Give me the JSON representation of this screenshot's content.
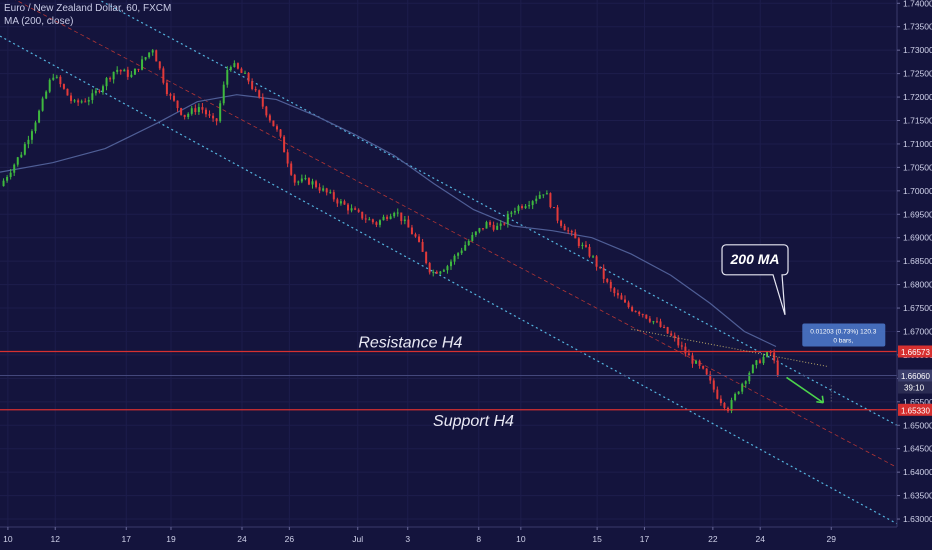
{
  "header": {
    "title": "Euro / New Zealand Dollar, 60, FXCM",
    "indicator": "MA (200, close)"
  },
  "colors": {
    "background": "#14143d",
    "up_candle": "#3fb93f",
    "down_candle": "#e23a3a",
    "ma_line": "#4f5e96",
    "channel_lines": "#55b5e0",
    "mid_channel": "#b23535",
    "resistance": "#d63030",
    "support": "#d63030",
    "arrow": "#4cd44c"
  },
  "annotations": {
    "resistance_label": "Resistance H4",
    "support_label": "Support H4",
    "ma_callout": "200 MA",
    "measure_line1": "0.01203 (0.73%) 120.3",
    "measure_line2": "0 bars,",
    "timer": "39:10"
  },
  "chart_data": {
    "type": "candlestick",
    "symbol": "EURNZD",
    "timeframe": "60",
    "x_tick_labels": [
      "10",
      "12",
      "17",
      "19",
      "24",
      "26",
      "Jul",
      "3",
      "8",
      "10",
      "15",
      "17",
      "22",
      "24",
      "29"
    ],
    "y_ticks": [
      1.74,
      1.735,
      1.73,
      1.725,
      1.72,
      1.715,
      1.71,
      1.705,
      1.7,
      1.695,
      1.69,
      1.685,
      1.68,
      1.675,
      1.67,
      1.665,
      1.66,
      1.655,
      1.65,
      1.645,
      1.64,
      1.635,
      1.63
    ],
    "y_tick_labels": [
      "1.74000",
      "1.73500",
      "1.73000",
      "1.72500",
      "1.72000",
      "1.71500",
      "1.71000",
      "1.70500",
      "1.70000",
      "1.69500",
      "1.69000",
      "1.68500",
      "1.68000",
      "1.67500",
      "1.67000",
      "1.66500",
      "1.66000",
      "1.65500",
      "1.65000",
      "1.64500",
      "1.64000",
      "1.63500",
      "1.63000"
    ],
    "ylim": [
      1.6283,
      1.7407
    ],
    "price_labels": {
      "resistance": {
        "value": 1.66573,
        "label": "1.66573"
      },
      "current": {
        "value": 1.6606,
        "label": "1.66060"
      },
      "support": {
        "value": 1.6533,
        "label": "1.65330"
      }
    },
    "price_path": [
      {
        "x": 0,
        "y": 1.701
      },
      {
        "x": 0.8,
        "y": 1.708
      },
      {
        "x": 1.5,
        "y": 1.717
      },
      {
        "x": 2.0,
        "y": 1.725
      },
      {
        "x": 2.8,
        "y": 1.7185
      },
      {
        "x": 3.5,
        "y": 1.72
      },
      {
        "x": 4.4,
        "y": 1.726
      },
      {
        "x": 5.0,
        "y": 1.7245
      },
      {
        "x": 5.8,
        "y": 1.7305
      },
      {
        "x": 6.4,
        "y": 1.7205
      },
      {
        "x": 7.0,
        "y": 1.716
      },
      {
        "x": 7.6,
        "y": 1.718
      },
      {
        "x": 8.2,
        "y": 1.714
      },
      {
        "x": 8.7,
        "y": 1.7275
      },
      {
        "x": 9.4,
        "y": 1.724
      },
      {
        "x": 9.9,
        "y": 1.719
      },
      {
        "x": 10.6,
        "y": 1.712
      },
      {
        "x": 11.2,
        "y": 1.702
      },
      {
        "x": 11.8,
        "y": 1.702
      },
      {
        "x": 12.8,
        "y": 1.698
      },
      {
        "x": 13.6,
        "y": 1.695
      },
      {
        "x": 14.3,
        "y": 1.693
      },
      {
        "x": 15.0,
        "y": 1.696
      },
      {
        "x": 15.8,
        "y": 1.69
      },
      {
        "x": 16.4,
        "y": 1.6825
      },
      {
        "x": 17.0,
        "y": 1.684
      },
      {
        "x": 17.6,
        "y": 1.688
      },
      {
        "x": 18.1,
        "y": 1.691
      },
      {
        "x": 18.5,
        "y": 1.693
      },
      {
        "x": 19.0,
        "y": 1.692
      },
      {
        "x": 19.5,
        "y": 1.696
      },
      {
        "x": 20.2,
        "y": 1.698
      },
      {
        "x": 20.7,
        "y": 1.7
      },
      {
        "x": 21.2,
        "y": 1.694
      },
      {
        "x": 21.8,
        "y": 1.69
      },
      {
        "x": 22.5,
        "y": 1.686
      },
      {
        "x": 23.2,
        "y": 1.679
      },
      {
        "x": 23.8,
        "y": 1.6755
      },
      {
        "x": 24.4,
        "y": 1.674
      },
      {
        "x": 25.0,
        "y": 1.6715
      },
      {
        "x": 25.6,
        "y": 1.6685
      },
      {
        "x": 26.2,
        "y": 1.6645
      },
      {
        "x": 26.8,
        "y": 1.661
      },
      {
        "x": 27.3,
        "y": 1.656
      },
      {
        "x": 27.7,
        "y": 1.6535
      },
      {
        "x": 28.1,
        "y": 1.658
      },
      {
        "x": 28.5,
        "y": 1.6615
      },
      {
        "x": 28.9,
        "y": 1.664
      },
      {
        "x": 29.3,
        "y": 1.6655
      },
      {
        "x": 29.6,
        "y": 1.6606
      }
    ],
    "ma200_path": [
      {
        "x": 0,
        "y": 1.704
      },
      {
        "x": 2.0,
        "y": 1.706
      },
      {
        "x": 4.0,
        "y": 1.709
      },
      {
        "x": 6.0,
        "y": 1.7145
      },
      {
        "x": 7.5,
        "y": 1.719
      },
      {
        "x": 9.0,
        "y": 1.7205
      },
      {
        "x": 10.5,
        "y": 1.7195
      },
      {
        "x": 12.0,
        "y": 1.716
      },
      {
        "x": 13.5,
        "y": 1.712
      },
      {
        "x": 15.0,
        "y": 1.7075
      },
      {
        "x": 16.5,
        "y": 1.7015
      },
      {
        "x": 18.0,
        "y": 1.696
      },
      {
        "x": 19.5,
        "y": 1.6925
      },
      {
        "x": 21.0,
        "y": 1.6915
      },
      {
        "x": 22.5,
        "y": 1.69
      },
      {
        "x": 24.0,
        "y": 1.6865
      },
      {
        "x": 25.5,
        "y": 1.682
      },
      {
        "x": 27.0,
        "y": 1.676
      },
      {
        "x": 28.3,
        "y": 1.67
      },
      {
        "x": 29.5,
        "y": 1.6668
      }
    ],
    "x_range": [
      0,
      34.1
    ],
    "x_tick_positions": [
      0.3,
      2.1,
      4.8,
      6.5,
      9.2,
      11.0,
      13.6,
      15.5,
      18.2,
      19.8,
      22.7,
      24.5,
      27.1,
      28.9,
      31.6
    ]
  }
}
